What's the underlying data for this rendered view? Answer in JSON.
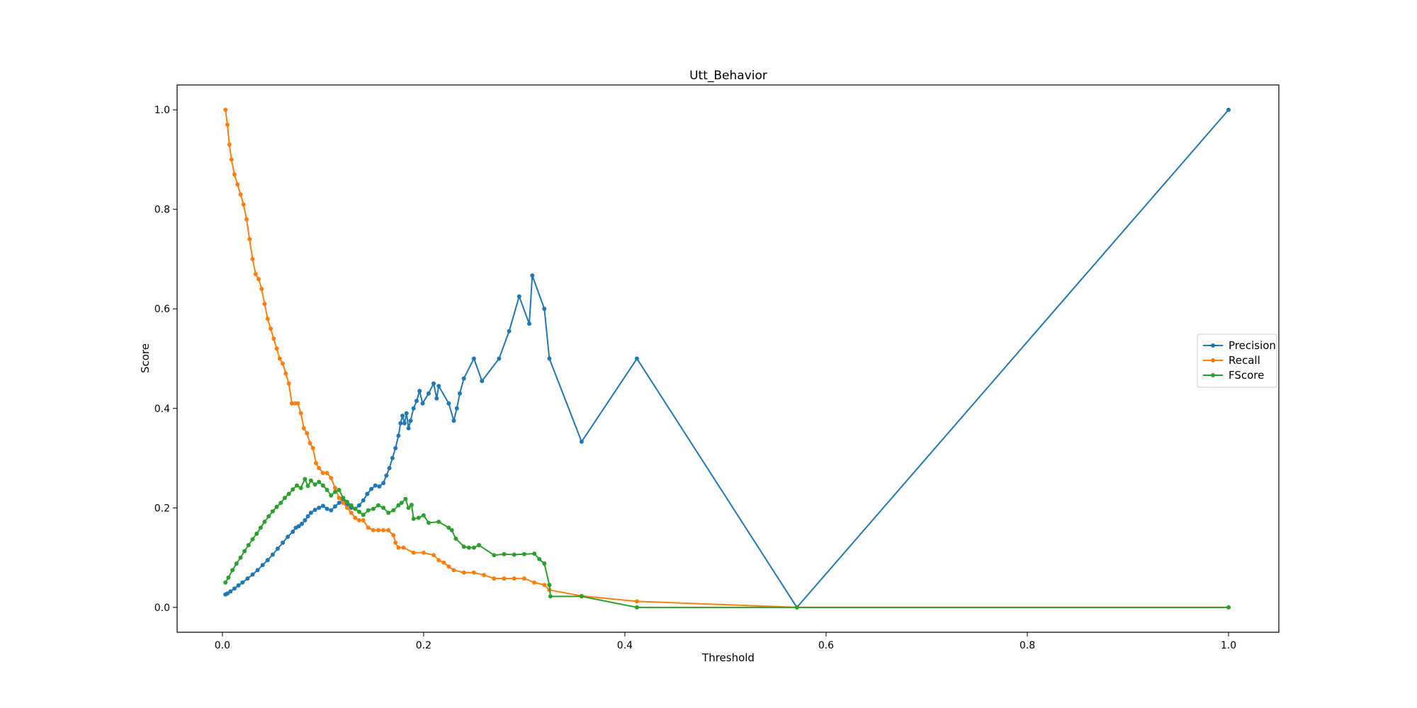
{
  "chart_data": {
    "type": "line",
    "title": "Utt_Behavior",
    "xlabel": "Threshold",
    "ylabel": "Score",
    "xlim": [
      -0.045,
      1.05
    ],
    "ylim": [
      -0.05,
      1.05
    ],
    "xticks": [
      0.0,
      0.2,
      0.4,
      0.6,
      0.8,
      1.0
    ],
    "xtick_labels": [
      "0.0",
      "0.2",
      "0.4",
      "0.6",
      "0.8",
      "1.0"
    ],
    "yticks": [
      0.0,
      0.2,
      0.4,
      0.6,
      0.8,
      1.0
    ],
    "ytick_labels": [
      "0.0",
      "0.2",
      "0.4",
      "0.6",
      "0.8",
      "1.0"
    ],
    "grid": false,
    "legend_position": "center-right",
    "series": [
      {
        "name": "Precision",
        "color": "#1f77b4",
        "points": [
          [
            0.003,
            0.026
          ],
          [
            0.005,
            0.028
          ],
          [
            0.008,
            0.032
          ],
          [
            0.012,
            0.038
          ],
          [
            0.016,
            0.044
          ],
          [
            0.02,
            0.05
          ],
          [
            0.025,
            0.058
          ],
          [
            0.03,
            0.066
          ],
          [
            0.035,
            0.075
          ],
          [
            0.04,
            0.085
          ],
          [
            0.045,
            0.095
          ],
          [
            0.05,
            0.106
          ],
          [
            0.055,
            0.118
          ],
          [
            0.06,
            0.13
          ],
          [
            0.065,
            0.142
          ],
          [
            0.07,
            0.152
          ],
          [
            0.073,
            0.16
          ],
          [
            0.076,
            0.163
          ],
          [
            0.079,
            0.168
          ],
          [
            0.082,
            0.175
          ],
          [
            0.085,
            0.183
          ],
          [
            0.088,
            0.19
          ],
          [
            0.092,
            0.196
          ],
          [
            0.096,
            0.2
          ],
          [
            0.1,
            0.204
          ],
          [
            0.104,
            0.198
          ],
          [
            0.108,
            0.195
          ],
          [
            0.112,
            0.203
          ],
          [
            0.116,
            0.21
          ],
          [
            0.12,
            0.216
          ],
          [
            0.124,
            0.208
          ],
          [
            0.128,
            0.2
          ],
          [
            0.132,
            0.198
          ],
          [
            0.136,
            0.205
          ],
          [
            0.14,
            0.215
          ],
          [
            0.144,
            0.228
          ],
          [
            0.148,
            0.238
          ],
          [
            0.152,
            0.245
          ],
          [
            0.156,
            0.243
          ],
          [
            0.16,
            0.25
          ],
          [
            0.163,
            0.265
          ],
          [
            0.166,
            0.28
          ],
          [
            0.169,
            0.3
          ],
          [
            0.172,
            0.32
          ],
          [
            0.175,
            0.345
          ],
          [
            0.177,
            0.37
          ],
          [
            0.179,
            0.385
          ],
          [
            0.181,
            0.37
          ],
          [
            0.183,
            0.39
          ],
          [
            0.185,
            0.36
          ],
          [
            0.187,
            0.375
          ],
          [
            0.19,
            0.4
          ],
          [
            0.193,
            0.415
          ],
          [
            0.196,
            0.435
          ],
          [
            0.199,
            0.41
          ],
          [
            0.205,
            0.43
          ],
          [
            0.21,
            0.45
          ],
          [
            0.213,
            0.42
          ],
          [
            0.215,
            0.445
          ],
          [
            0.225,
            0.41
          ],
          [
            0.23,
            0.375
          ],
          [
            0.233,
            0.4
          ],
          [
            0.236,
            0.43
          ],
          [
            0.24,
            0.46
          ],
          [
            0.25,
            0.5
          ],
          [
            0.258,
            0.455
          ],
          [
            0.275,
            0.5
          ],
          [
            0.285,
            0.555
          ],
          [
            0.295,
            0.625
          ],
          [
            0.305,
            0.57
          ],
          [
            0.308,
            0.667
          ],
          [
            0.32,
            0.6
          ],
          [
            0.325,
            0.5
          ],
          [
            0.357,
            0.333
          ],
          [
            0.412,
            0.5
          ],
          [
            0.571,
            0.0
          ],
          [
            1.0,
            1.0
          ]
        ]
      },
      {
        "name": "Recall",
        "color": "#ff7f0e",
        "points": [
          [
            0.003,
            1.0
          ],
          [
            0.005,
            0.97
          ],
          [
            0.007,
            0.93
          ],
          [
            0.009,
            0.9
          ],
          [
            0.012,
            0.87
          ],
          [
            0.015,
            0.85
          ],
          [
            0.018,
            0.83
          ],
          [
            0.021,
            0.81
          ],
          [
            0.024,
            0.78
          ],
          [
            0.027,
            0.74
          ],
          [
            0.03,
            0.7
          ],
          [
            0.033,
            0.67
          ],
          [
            0.036,
            0.66
          ],
          [
            0.039,
            0.64
          ],
          [
            0.042,
            0.61
          ],
          [
            0.045,
            0.58
          ],
          [
            0.048,
            0.56
          ],
          [
            0.051,
            0.54
          ],
          [
            0.054,
            0.52
          ],
          [
            0.057,
            0.5
          ],
          [
            0.06,
            0.49
          ],
          [
            0.063,
            0.47
          ],
          [
            0.066,
            0.45
          ],
          [
            0.069,
            0.41
          ],
          [
            0.072,
            0.41
          ],
          [
            0.075,
            0.41
          ],
          [
            0.078,
            0.39
          ],
          [
            0.081,
            0.36
          ],
          [
            0.084,
            0.35
          ],
          [
            0.087,
            0.33
          ],
          [
            0.09,
            0.32
          ],
          [
            0.093,
            0.29
          ],
          [
            0.096,
            0.28
          ],
          [
            0.1,
            0.27
          ],
          [
            0.104,
            0.27
          ],
          [
            0.108,
            0.26
          ],
          [
            0.112,
            0.24
          ],
          [
            0.116,
            0.22
          ],
          [
            0.12,
            0.21
          ],
          [
            0.124,
            0.2
          ],
          [
            0.128,
            0.19
          ],
          [
            0.132,
            0.18
          ],
          [
            0.136,
            0.175
          ],
          [
            0.14,
            0.175
          ],
          [
            0.145,
            0.16
          ],
          [
            0.15,
            0.155
          ],
          [
            0.155,
            0.155
          ],
          [
            0.16,
            0.155
          ],
          [
            0.165,
            0.155
          ],
          [
            0.17,
            0.145
          ],
          [
            0.172,
            0.13
          ],
          [
            0.175,
            0.12
          ],
          [
            0.18,
            0.12
          ],
          [
            0.19,
            0.11
          ],
          [
            0.2,
            0.11
          ],
          [
            0.21,
            0.105
          ],
          [
            0.215,
            0.095
          ],
          [
            0.22,
            0.09
          ],
          [
            0.225,
            0.082
          ],
          [
            0.23,
            0.075
          ],
          [
            0.24,
            0.07
          ],
          [
            0.25,
            0.07
          ],
          [
            0.26,
            0.065
          ],
          [
            0.27,
            0.058
          ],
          [
            0.28,
            0.058
          ],
          [
            0.29,
            0.058
          ],
          [
            0.3,
            0.058
          ],
          [
            0.31,
            0.05
          ],
          [
            0.32,
            0.045
          ],
          [
            0.325,
            0.035
          ],
          [
            0.357,
            0.023
          ],
          [
            0.412,
            0.012
          ],
          [
            0.571,
            0.0
          ],
          [
            1.0,
            0.0
          ]
        ]
      },
      {
        "name": "FScore",
        "color": "#2ca02c",
        "points": [
          [
            0.003,
            0.05
          ],
          [
            0.006,
            0.06
          ],
          [
            0.01,
            0.075
          ],
          [
            0.014,
            0.088
          ],
          [
            0.018,
            0.1
          ],
          [
            0.022,
            0.113
          ],
          [
            0.026,
            0.125
          ],
          [
            0.03,
            0.137
          ],
          [
            0.034,
            0.148
          ],
          [
            0.038,
            0.16
          ],
          [
            0.042,
            0.172
          ],
          [
            0.046,
            0.183
          ],
          [
            0.05,
            0.193
          ],
          [
            0.054,
            0.202
          ],
          [
            0.058,
            0.21
          ],
          [
            0.062,
            0.22
          ],
          [
            0.066,
            0.228
          ],
          [
            0.07,
            0.237
          ],
          [
            0.074,
            0.245
          ],
          [
            0.078,
            0.24
          ],
          [
            0.082,
            0.258
          ],
          [
            0.085,
            0.244
          ],
          [
            0.088,
            0.255
          ],
          [
            0.092,
            0.247
          ],
          [
            0.096,
            0.252
          ],
          [
            0.1,
            0.245
          ],
          [
            0.104,
            0.236
          ],
          [
            0.108,
            0.225
          ],
          [
            0.112,
            0.232
          ],
          [
            0.116,
            0.236
          ],
          [
            0.12,
            0.22
          ],
          [
            0.124,
            0.212
          ],
          [
            0.128,
            0.205
          ],
          [
            0.132,
            0.198
          ],
          [
            0.136,
            0.192
          ],
          [
            0.14,
            0.186
          ],
          [
            0.145,
            0.195
          ],
          [
            0.15,
            0.198
          ],
          [
            0.155,
            0.205
          ],
          [
            0.16,
            0.2
          ],
          [
            0.165,
            0.19
          ],
          [
            0.17,
            0.195
          ],
          [
            0.175,
            0.205
          ],
          [
            0.178,
            0.21
          ],
          [
            0.182,
            0.218
          ],
          [
            0.185,
            0.2
          ],
          [
            0.188,
            0.206
          ],
          [
            0.19,
            0.178
          ],
          [
            0.195,
            0.18
          ],
          [
            0.2,
            0.185
          ],
          [
            0.205,
            0.17
          ],
          [
            0.215,
            0.172
          ],
          [
            0.225,
            0.16
          ],
          [
            0.228,
            0.155
          ],
          [
            0.232,
            0.138
          ],
          [
            0.24,
            0.122
          ],
          [
            0.245,
            0.12
          ],
          [
            0.25,
            0.12
          ],
          [
            0.255,
            0.125
          ],
          [
            0.27,
            0.105
          ],
          [
            0.28,
            0.107
          ],
          [
            0.29,
            0.106
          ],
          [
            0.3,
            0.107
          ],
          [
            0.31,
            0.108
          ],
          [
            0.315,
            0.097
          ],
          [
            0.32,
            0.088
          ],
          [
            0.325,
            0.045
          ],
          [
            0.326,
            0.022
          ],
          [
            0.357,
            0.022
          ],
          [
            0.412,
            0.0
          ],
          [
            0.571,
            0.0
          ],
          [
            1.0,
            0.0
          ]
        ]
      }
    ]
  }
}
